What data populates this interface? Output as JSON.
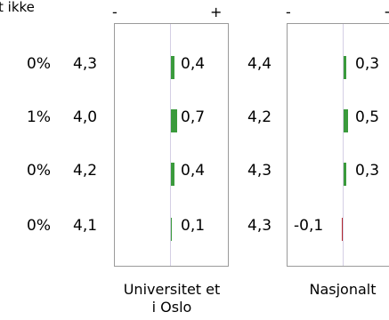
{
  "header": {
    "truncated_label": "t ikke"
  },
  "colors": {
    "positive": "#3a9a3c",
    "negative": "#b3272d",
    "axis": "#d4cfe4",
    "frame": "#9a9a9a"
  },
  "rows": [
    {
      "ikke_pct": "0%",
      "uio_score": "4,3",
      "uio_diff": "0,4",
      "uio_diff_value": 0.4,
      "nat_score": "4,4",
      "nat_diff": "0,3",
      "nat_diff_value": 0.3
    },
    {
      "ikke_pct": "1%",
      "uio_score": "4,0",
      "uio_diff": "0,7",
      "uio_diff_value": 0.7,
      "nat_score": "4,2",
      "nat_diff": "0,5",
      "nat_diff_value": 0.5
    },
    {
      "ikke_pct": "0%",
      "uio_score": "4,2",
      "uio_diff": "0,4",
      "uio_diff_value": 0.4,
      "nat_score": "4,3",
      "nat_diff": "0,3",
      "nat_diff_value": 0.3
    },
    {
      "ikke_pct": "0%",
      "uio_score": "4,1",
      "uio_diff": "0,1",
      "uio_diff_value": 0.1,
      "nat_score": "4,3",
      "nat_diff": "-0,1",
      "nat_diff_value": -0.1
    }
  ],
  "panels": {
    "uio": {
      "minus": "-",
      "plus": "+",
      "label": "Universitet et i Oslo"
    },
    "nat": {
      "minus": "-",
      "plus": "+",
      "label": "Nasjonalt"
    }
  }
}
